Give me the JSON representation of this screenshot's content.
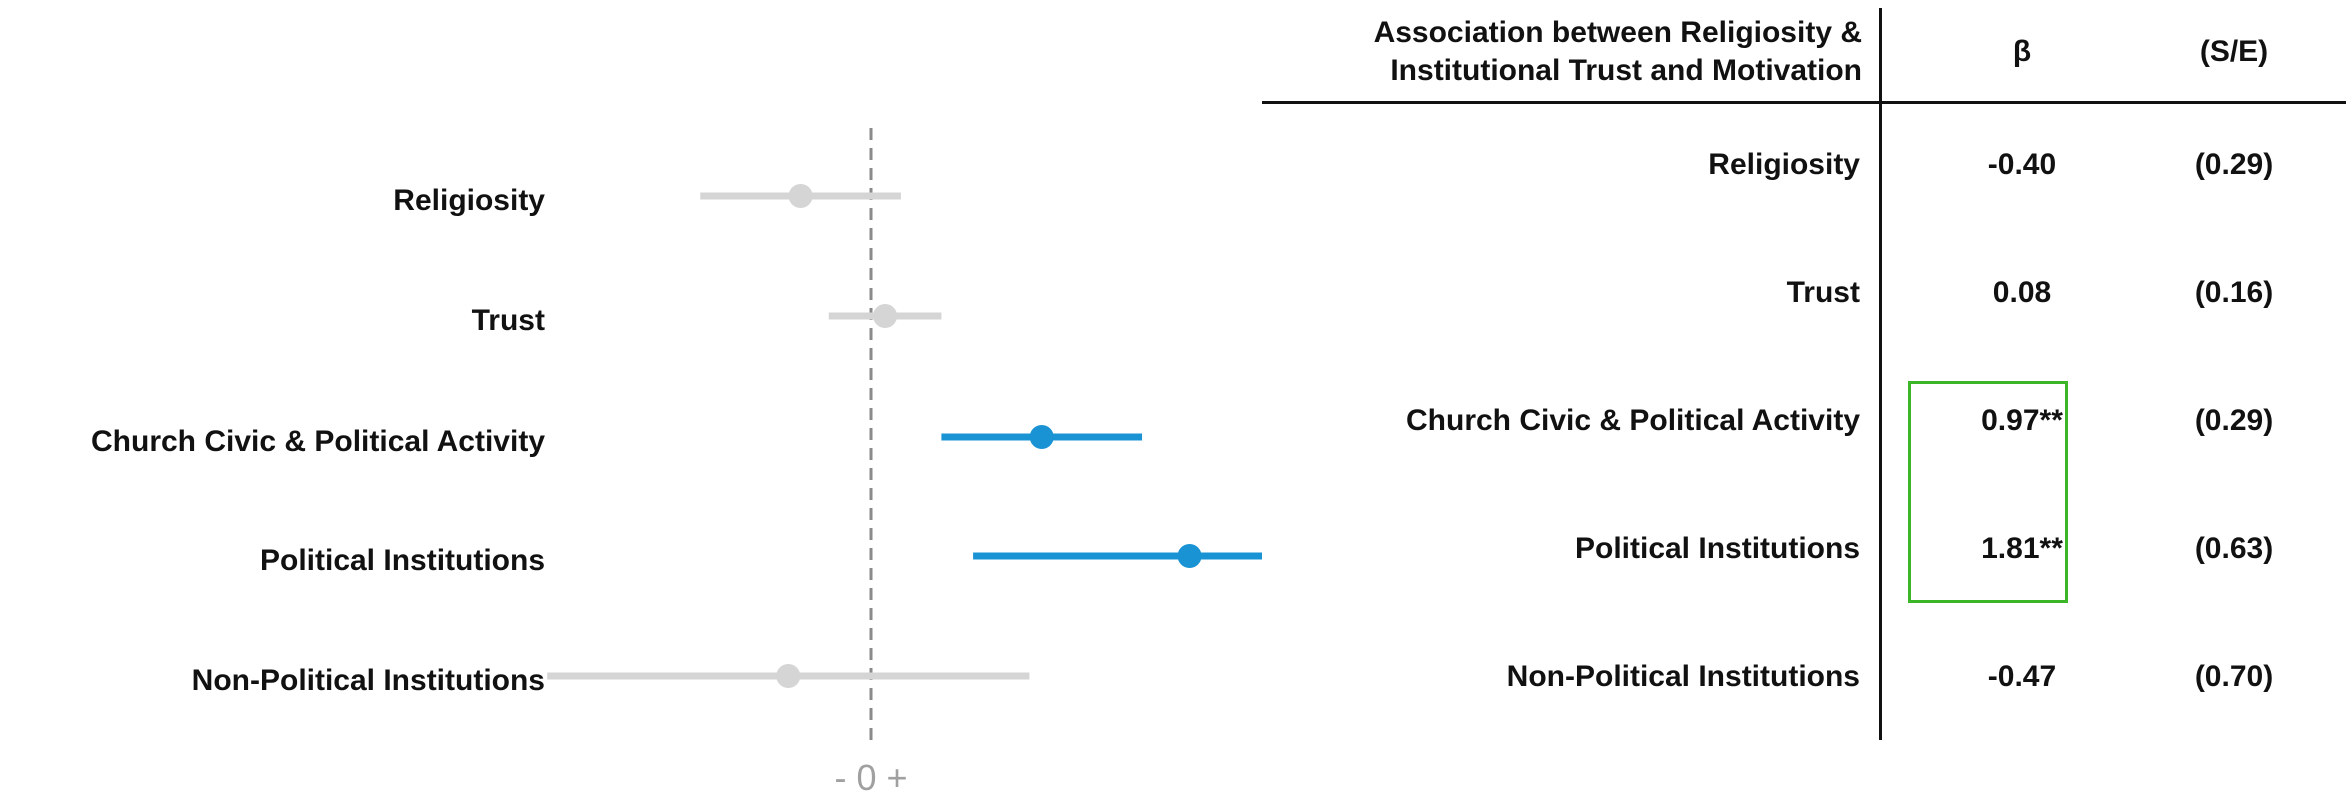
{
  "chart_data": {
    "type": "coefficient-plot",
    "categories": [
      "Religiosity",
      "Trust",
      "Church Civic & Political Activity",
      "Political Institutions",
      "Non-Political Institutions"
    ],
    "estimates": [
      -0.4,
      0.08,
      0.97,
      1.81,
      -0.47
    ],
    "ci_low": [
      -0.97,
      -0.24,
      0.4,
      0.58,
      -1.84
    ],
    "ci_high": [
      0.17,
      0.4,
      1.54,
      3.04,
      0.9
    ],
    "significant": [
      false,
      false,
      true,
      true,
      false
    ],
    "reference_line": 0,
    "xlim": [
      -2.0,
      2.4
    ],
    "x_axis_label": "- 0 +",
    "colors": {
      "significant": "#1a93d4",
      "nonsignificant": "#d5d5d5",
      "refline": "#8a8a8a"
    }
  },
  "table": {
    "title_line1": "Association between Religiosity &",
    "title_line2": "Institutional Trust and Motivation",
    "col_beta": "β",
    "col_se": "(S/E)",
    "rows": [
      {
        "label": "Religiosity",
        "beta": "-0.40",
        "se": "(0.29)"
      },
      {
        "label": "Trust",
        "beta": "0.08",
        "se": "(0.16)"
      },
      {
        "label": "Church Civic & Political Activity",
        "beta": "0.97**",
        "se": "(0.29)"
      },
      {
        "label": "Political Institutions",
        "beta": "1.81**",
        "se": "(0.63)"
      },
      {
        "label": "Non-Political Institutions",
        "beta": "-0.47",
        "se": "(0.70)"
      }
    ],
    "highlight_color": "#3cb527"
  }
}
